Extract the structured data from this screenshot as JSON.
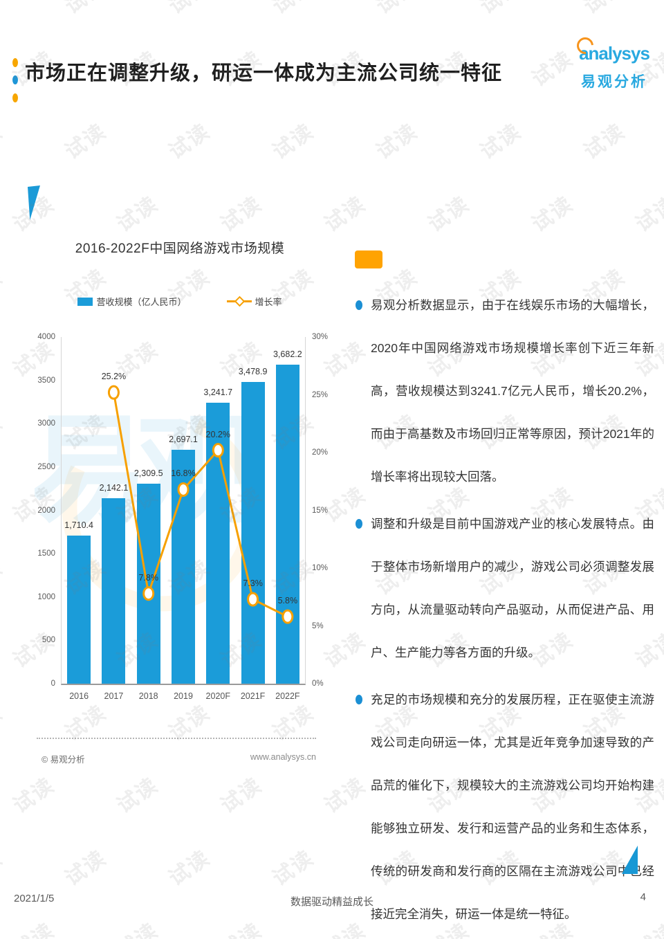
{
  "page": {
    "title": "市场正在调整升级，研运一体成为主流公司统一特征",
    "watermark": "试读",
    "footer": {
      "date": "2021/1/5",
      "slogan": "数据驱动精益成长",
      "page_number": "4"
    }
  },
  "logo": {
    "brand_en": "analysys",
    "brand_cn": "易观分析"
  },
  "chart": {
    "title": "2016-2022F中国网络游戏市场规模",
    "source": "© 易观分析",
    "website": "www.analysys.cn"
  },
  "chart_data": {
    "type": "bar",
    "title": "2016-2022F中国网络游戏市场规模",
    "categories": [
      "2016",
      "2017",
      "2018",
      "2019",
      "2020F",
      "2021F",
      "2022F"
    ],
    "series": [
      {
        "name": "营收规模（亿人民币）",
        "type": "bar",
        "values": [
          1710.4,
          2142.1,
          2309.5,
          2697.1,
          3241.7,
          3478.9,
          3682.2
        ],
        "labels": [
          "1,710.4",
          "2,142.1",
          "2,309.5",
          "2,697.1",
          "3,241.7",
          "3,478.9",
          "3,682.2"
        ]
      },
      {
        "name": "增长率",
        "type": "line",
        "values": [
          null,
          25.2,
          7.8,
          16.8,
          20.2,
          7.3,
          5.8
        ],
        "labels": [
          null,
          "25.2%",
          "7.8%",
          "16.8%",
          "20.2%",
          "7.3%",
          "5.8%"
        ]
      }
    ],
    "left_axis": {
      "min": 0,
      "max": 4000,
      "ticks": [
        0,
        500,
        1000,
        1500,
        2000,
        2500,
        3000,
        3500,
        4000
      ]
    },
    "right_axis": {
      "min": 0,
      "max": 30,
      "ticks": [
        0,
        5,
        10,
        15,
        20,
        25,
        30
      ],
      "suffix": "%"
    },
    "legend_position": "top",
    "grid": false
  },
  "bullets": [
    {
      "text": "易观分析数据显示，由于在线娱乐市场的大幅增长，2020年中国网络游戏市场规模增长率创下近三年新高，营收规模达到3241.7亿元人民币，增长20.2%，而由于高基数及市场回归正常等原因，预计2021年的增长率将出现较大回落。"
    },
    {
      "text": "调整和升级是目前中国游戏产业的核心发展特点。由于整体市场新增用户的减少，游戏公司必须调整发展方向，从流量驱动转向产品驱动，从而促进产品、用户、生产能力等各方面的升级。"
    },
    {
      "text": "充足的市场规模和充分的发展历程，正在驱使主流游戏公司走向研运一体，尤其是近年竞争加速导致的产品荒的催化下，规模较大的主流游戏公司均开始构建能够独立研发、发行和运营产品的业务和生态体系，传统的研发商和发行商的区隔在主流游戏公司中已经接近完全消失，研运一体是统一特征。"
    }
  ],
  "colors": {
    "bar_blue": "#1B9CD9",
    "line_orange": "#F7A000",
    "accent_orange": "#FFA302",
    "brand_cyan": "#29A9E0"
  }
}
